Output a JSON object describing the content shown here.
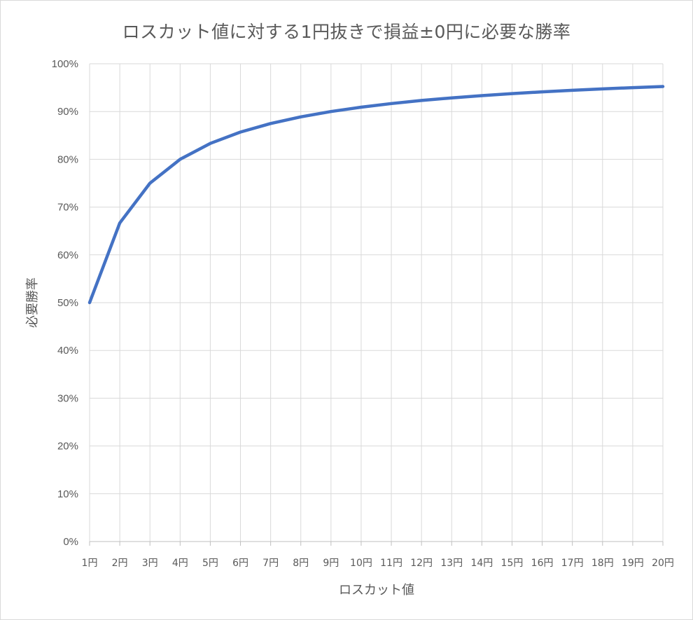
{
  "chart_data": {
    "type": "line",
    "title": "ロスカット値に対する1円抜きで損益±0円に必要な勝率",
    "xlabel": "ロスカット値",
    "ylabel": "必要勝率",
    "categories": [
      "1円",
      "2円",
      "3円",
      "4円",
      "5円",
      "6円",
      "7円",
      "8円",
      "9円",
      "10円",
      "11円",
      "12円",
      "13円",
      "14円",
      "15円",
      "16円",
      "17円",
      "18円",
      "19円",
      "20円"
    ],
    "series": [
      {
        "color": "#4472c4",
        "values": [
          0.5,
          0.6667,
          0.75,
          0.8,
          0.8333,
          0.8571,
          0.875,
          0.8889,
          0.9,
          0.9091,
          0.9167,
          0.9231,
          0.9286,
          0.9333,
          0.9375,
          0.9412,
          0.9444,
          0.9474,
          0.95,
          0.9524
        ]
      }
    ],
    "ylim": [
      0,
      1
    ],
    "yticks": [
      "0%",
      "10%",
      "20%",
      "30%",
      "40%",
      "50%",
      "60%",
      "70%",
      "80%",
      "90%",
      "100%"
    ],
    "grid": true,
    "legend": "none"
  }
}
